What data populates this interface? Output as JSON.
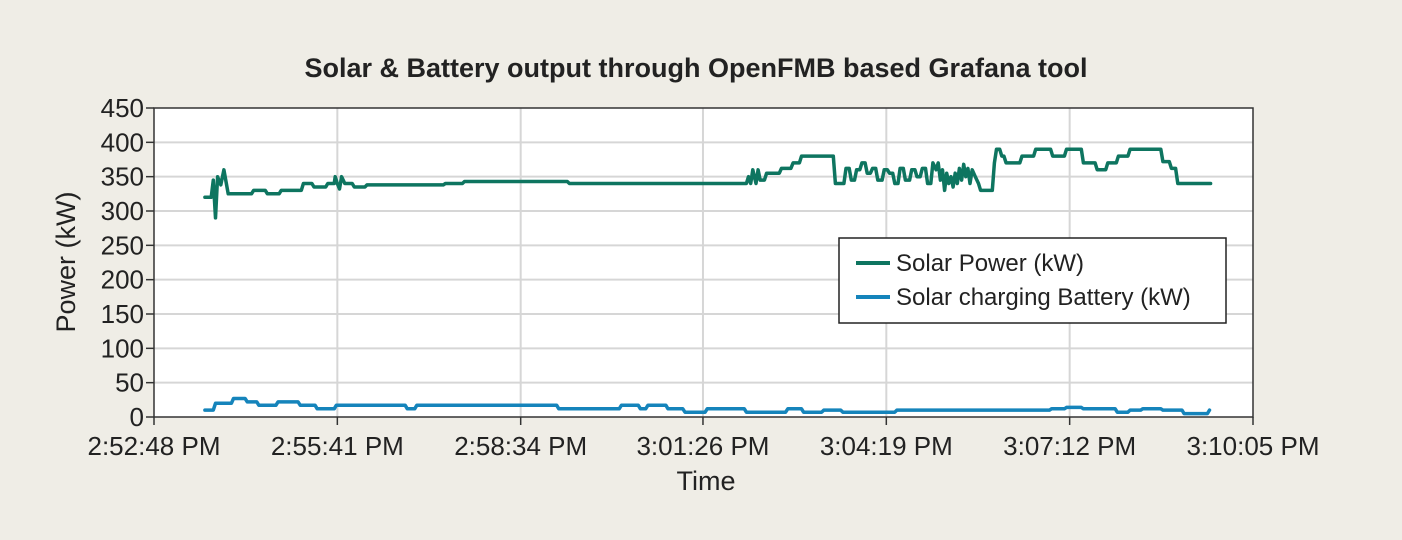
{
  "chart_data": {
    "type": "line",
    "title": "Solar & Battery output through OpenFMB based Grafana tool",
    "xlabel": "Time",
    "ylabel": "Power (kW)",
    "x_ticks": [
      "2:52:48 PM",
      "2:55:41 PM",
      "2:58:34 PM",
      "3:01:26 PM",
      "3:04:19 PM",
      "3:07:12 PM",
      "3:10:05 PM"
    ],
    "xlim": [
      "2:52:48 PM",
      "3:10:05 PM"
    ],
    "y_ticks": [
      0,
      50,
      100,
      150,
      200,
      250,
      300,
      350,
      400,
      450
    ],
    "ylim": [
      0,
      450
    ],
    "grid": true,
    "legend_position": "center-right",
    "series": [
      {
        "name": "Solar Power (kW)",
        "color": "#0e7560",
        "points": [
          [
            "2:53:36 PM",
            320
          ],
          [
            "2:53:42 PM",
            320
          ],
          [
            "2:53:44 PM",
            345
          ],
          [
            "2:53:46 PM",
            290
          ],
          [
            "2:53:48 PM",
            350
          ],
          [
            "2:53:51 PM",
            338
          ],
          [
            "2:53:54 PM",
            360
          ],
          [
            "2:53:58 PM",
            325
          ],
          [
            "2:54:20 PM",
            325
          ],
          [
            "2:54:22 PM",
            330
          ],
          [
            "2:54:33 PM",
            330
          ],
          [
            "2:54:35 PM",
            325
          ],
          [
            "2:54:46 PM",
            325
          ],
          [
            "2:54:48 PM",
            330
          ],
          [
            "2:55:07 PM",
            330
          ],
          [
            "2:55:09 PM",
            340
          ],
          [
            "2:55:17 PM",
            340
          ],
          [
            "2:55:19 PM",
            335
          ],
          [
            "2:55:30 PM",
            335
          ],
          [
            "2:55:32 PM",
            340
          ],
          [
            "2:55:38 PM",
            340
          ],
          [
            "2:55:39 PM",
            350
          ],
          [
            "2:55:41 PM",
            340
          ],
          [
            "2:55:43 PM",
            332
          ],
          [
            "2:55:45 PM",
            350
          ],
          [
            "2:55:48 PM",
            340
          ],
          [
            "2:55:55 PM",
            340
          ],
          [
            "2:55:57 PM",
            335
          ],
          [
            "2:56:07 PM",
            335
          ],
          [
            "2:56:09 PM",
            338
          ],
          [
            "2:57:21 PM",
            338
          ],
          [
            "2:57:23 PM",
            340
          ],
          [
            "2:57:39 PM",
            340
          ],
          [
            "2:57:41 PM",
            343
          ],
          [
            "2:59:18 PM",
            343
          ],
          [
            "2:59:20 PM",
            340
          ],
          [
            "3:02:07 PM",
            340
          ],
          [
            "3:02:09 PM",
            350
          ],
          [
            "3:02:11 PM",
            340
          ],
          [
            "3:02:13 PM",
            360
          ],
          [
            "3:02:16 PM",
            340
          ],
          [
            "3:02:18 PM",
            360
          ],
          [
            "3:02:20 PM",
            345
          ],
          [
            "3:02:24 PM",
            345
          ],
          [
            "3:02:26 PM",
            355
          ],
          [
            "3:02:38 PM",
            355
          ],
          [
            "3:02:40 PM",
            362
          ],
          [
            "3:02:49 PM",
            362
          ],
          [
            "3:02:51 PM",
            370
          ],
          [
            "3:02:57 PM",
            370
          ],
          [
            "3:02:59 PM",
            380
          ],
          [
            "3:03:29 PM",
            380
          ],
          [
            "3:03:31 PM",
            340
          ],
          [
            "3:03:39 PM",
            340
          ],
          [
            "3:03:41 PM",
            362
          ],
          [
            "3:03:44 PM",
            362
          ],
          [
            "3:03:46 PM",
            345
          ],
          [
            "3:03:49 PM",
            345
          ],
          [
            "3:03:51 PM",
            360
          ],
          [
            "3:03:54 PM",
            360
          ],
          [
            "3:03:56 PM",
            370
          ],
          [
            "3:03:59 PM",
            370
          ],
          [
            "3:04:01 PM",
            355
          ],
          [
            "3:04:04 PM",
            355
          ],
          [
            "3:04:06 PM",
            362
          ],
          [
            "3:04:09 PM",
            362
          ],
          [
            "3:04:11 PM",
            345
          ],
          [
            "3:04:15 PM",
            345
          ],
          [
            "3:04:17 PM",
            360
          ],
          [
            "3:04:20 PM",
            360
          ],
          [
            "3:04:22 PM",
            355
          ],
          [
            "3:04:25 PM",
            355
          ],
          [
            "3:04:27 PM",
            340
          ],
          [
            "3:04:30 PM",
            340
          ],
          [
            "3:04:32 PM",
            362
          ],
          [
            "3:04:35 PM",
            362
          ],
          [
            "3:04:37 PM",
            345
          ],
          [
            "3:04:41 PM",
            345
          ],
          [
            "3:04:43 PM",
            360
          ],
          [
            "3:04:46 PM",
            360
          ],
          [
            "3:04:48 PM",
            350
          ],
          [
            "3:04:51 PM",
            350
          ],
          [
            "3:04:53 PM",
            362
          ],
          [
            "3:04:56 PM",
            362
          ],
          [
            "3:04:58 PM",
            340
          ],
          [
            "3:05:01 PM",
            340
          ],
          [
            "3:05:03 PM",
            370
          ],
          [
            "3:05:06 PM",
            360
          ],
          [
            "3:05:08 PM",
            370
          ],
          [
            "3:05:10 PM",
            345
          ],
          [
            "3:05:12 PM",
            360
          ],
          [
            "3:05:14 PM",
            330
          ],
          [
            "3:05:16 PM",
            355
          ],
          [
            "3:05:18 PM",
            340
          ],
          [
            "3:05:20 PM",
            350
          ],
          [
            "3:05:22 PM",
            335
          ],
          [
            "3:05:24 PM",
            355
          ],
          [
            "3:05:26 PM",
            340
          ],
          [
            "3:05:28 PM",
            362
          ],
          [
            "3:05:30 PM",
            345
          ],
          [
            "3:05:32 PM",
            368
          ],
          [
            "3:05:34 PM",
            350
          ],
          [
            "3:05:36 PM",
            362
          ],
          [
            "3:05:38 PM",
            340
          ],
          [
            "3:05:40 PM",
            360
          ],
          [
            "3:05:43 PM",
            350
          ],
          [
            "3:05:46 PM",
            340
          ],
          [
            "3:05:48 PM",
            330
          ],
          [
            "3:05:59 PM",
            330
          ],
          [
            "3:06:01 PM",
            370
          ],
          [
            "3:06:03 PM",
            390
          ],
          [
            "3:06:06 PM",
            390
          ],
          [
            "3:06:08 PM",
            380
          ],
          [
            "3:06:10 PM",
            380
          ],
          [
            "3:06:12 PM",
            370
          ],
          [
            "3:06:25 PM",
            370
          ],
          [
            "3:06:27 PM",
            380
          ],
          [
            "3:06:38 PM",
            380
          ],
          [
            "3:06:40 PM",
            390
          ],
          [
            "3:06:54 PM",
            390
          ],
          [
            "3:06:56 PM",
            380
          ],
          [
            "3:07:07 PM",
            380
          ],
          [
            "3:07:09 PM",
            390
          ],
          [
            "3:07:23 PM",
            390
          ],
          [
            "3:07:25 PM",
            370
          ],
          [
            "3:07:36 PM",
            370
          ],
          [
            "3:07:38 PM",
            360
          ],
          [
            "3:07:46 PM",
            360
          ],
          [
            "3:07:48 PM",
            370
          ],
          [
            "3:07:56 PM",
            370
          ],
          [
            "3:07:58 PM",
            380
          ],
          [
            "3:08:07 PM",
            380
          ],
          [
            "3:08:09 PM",
            390
          ],
          [
            "3:08:38 PM",
            390
          ],
          [
            "3:08:40 PM",
            372
          ],
          [
            "3:08:46 PM",
            372
          ],
          [
            "3:08:48 PM",
            362
          ],
          [
            "3:08:52 PM",
            362
          ],
          [
            "3:08:54 PM",
            340
          ],
          [
            "3:09:25 PM",
            340
          ]
        ]
      },
      {
        "name": "Solar charging Battery (kW)",
        "color": "#1584bb",
        "points": [
          [
            "2:53:36 PM",
            10
          ],
          [
            "2:53:44 PM",
            10
          ],
          [
            "2:53:46 PM",
            20
          ],
          [
            "2:54:01 PM",
            20
          ],
          [
            "2:54:03 PM",
            27
          ],
          [
            "2:54:14 PM",
            27
          ],
          [
            "2:54:16 PM",
            22
          ],
          [
            "2:54:25 PM",
            22
          ],
          [
            "2:54:27 PM",
            17
          ],
          [
            "2:54:43 PM",
            17
          ],
          [
            "2:54:45 PM",
            22
          ],
          [
            "2:55:04 PM",
            22
          ],
          [
            "2:55:06 PM",
            17
          ],
          [
            "2:55:20 PM",
            17
          ],
          [
            "2:55:22 PM",
            12
          ],
          [
            "2:55:38 PM",
            12
          ],
          [
            "2:55:40 PM",
            17
          ],
          [
            "2:56:45 PM",
            17
          ],
          [
            "2:56:47 PM",
            12
          ],
          [
            "2:56:54 PM",
            12
          ],
          [
            "2:56:56 PM",
            17
          ],
          [
            "2:59:08 PM",
            17
          ],
          [
            "2:59:10 PM",
            12
          ],
          [
            "3:00:07 PM",
            12
          ],
          [
            "3:00:09 PM",
            17
          ],
          [
            "3:00:25 PM",
            17
          ],
          [
            "3:00:27 PM",
            12
          ],
          [
            "3:00:32 PM",
            12
          ],
          [
            "3:00:34 PM",
            17
          ],
          [
            "3:00:51 PM",
            17
          ],
          [
            "3:00:53 PM",
            12
          ],
          [
            "3:01:07 PM",
            12
          ],
          [
            "3:01:09 PM",
            7
          ],
          [
            "3:01:28 PM",
            7
          ],
          [
            "3:01:30 PM",
            12
          ],
          [
            "3:02:05 PM",
            12
          ],
          [
            "3:02:07 PM",
            7
          ],
          [
            "3:02:44 PM",
            7
          ],
          [
            "3:02:46 PM",
            12
          ],
          [
            "3:02:59 PM",
            12
          ],
          [
            "3:03:01 PM",
            7
          ],
          [
            "3:03:18 PM",
            7
          ],
          [
            "3:03:20 PM",
            10
          ],
          [
            "3:03:36 PM",
            10
          ],
          [
            "3:03:38 PM",
            7
          ],
          [
            "3:04:27 PM",
            7
          ],
          [
            "3:04:29 PM",
            10
          ],
          [
            "3:06:53 PM",
            10
          ],
          [
            "3:06:55 PM",
            12
          ],
          [
            "3:07:07 PM",
            12
          ],
          [
            "3:07:09 PM",
            14
          ],
          [
            "3:07:23 PM",
            14
          ],
          [
            "3:07:25 PM",
            12
          ],
          [
            "3:07:55 PM",
            12
          ],
          [
            "3:07:57 PM",
            7
          ],
          [
            "3:08:07 PM",
            7
          ],
          [
            "3:08:09 PM",
            10
          ],
          [
            "3:08:19 PM",
            10
          ],
          [
            "3:08:21 PM",
            12
          ],
          [
            "3:08:38 PM",
            12
          ],
          [
            "3:08:40 PM",
            10
          ],
          [
            "3:08:58 PM",
            10
          ],
          [
            "3:09:00 PM",
            5
          ],
          [
            "3:09:22 PM",
            5
          ],
          [
            "3:09:24 PM",
            10
          ]
        ]
      }
    ]
  }
}
